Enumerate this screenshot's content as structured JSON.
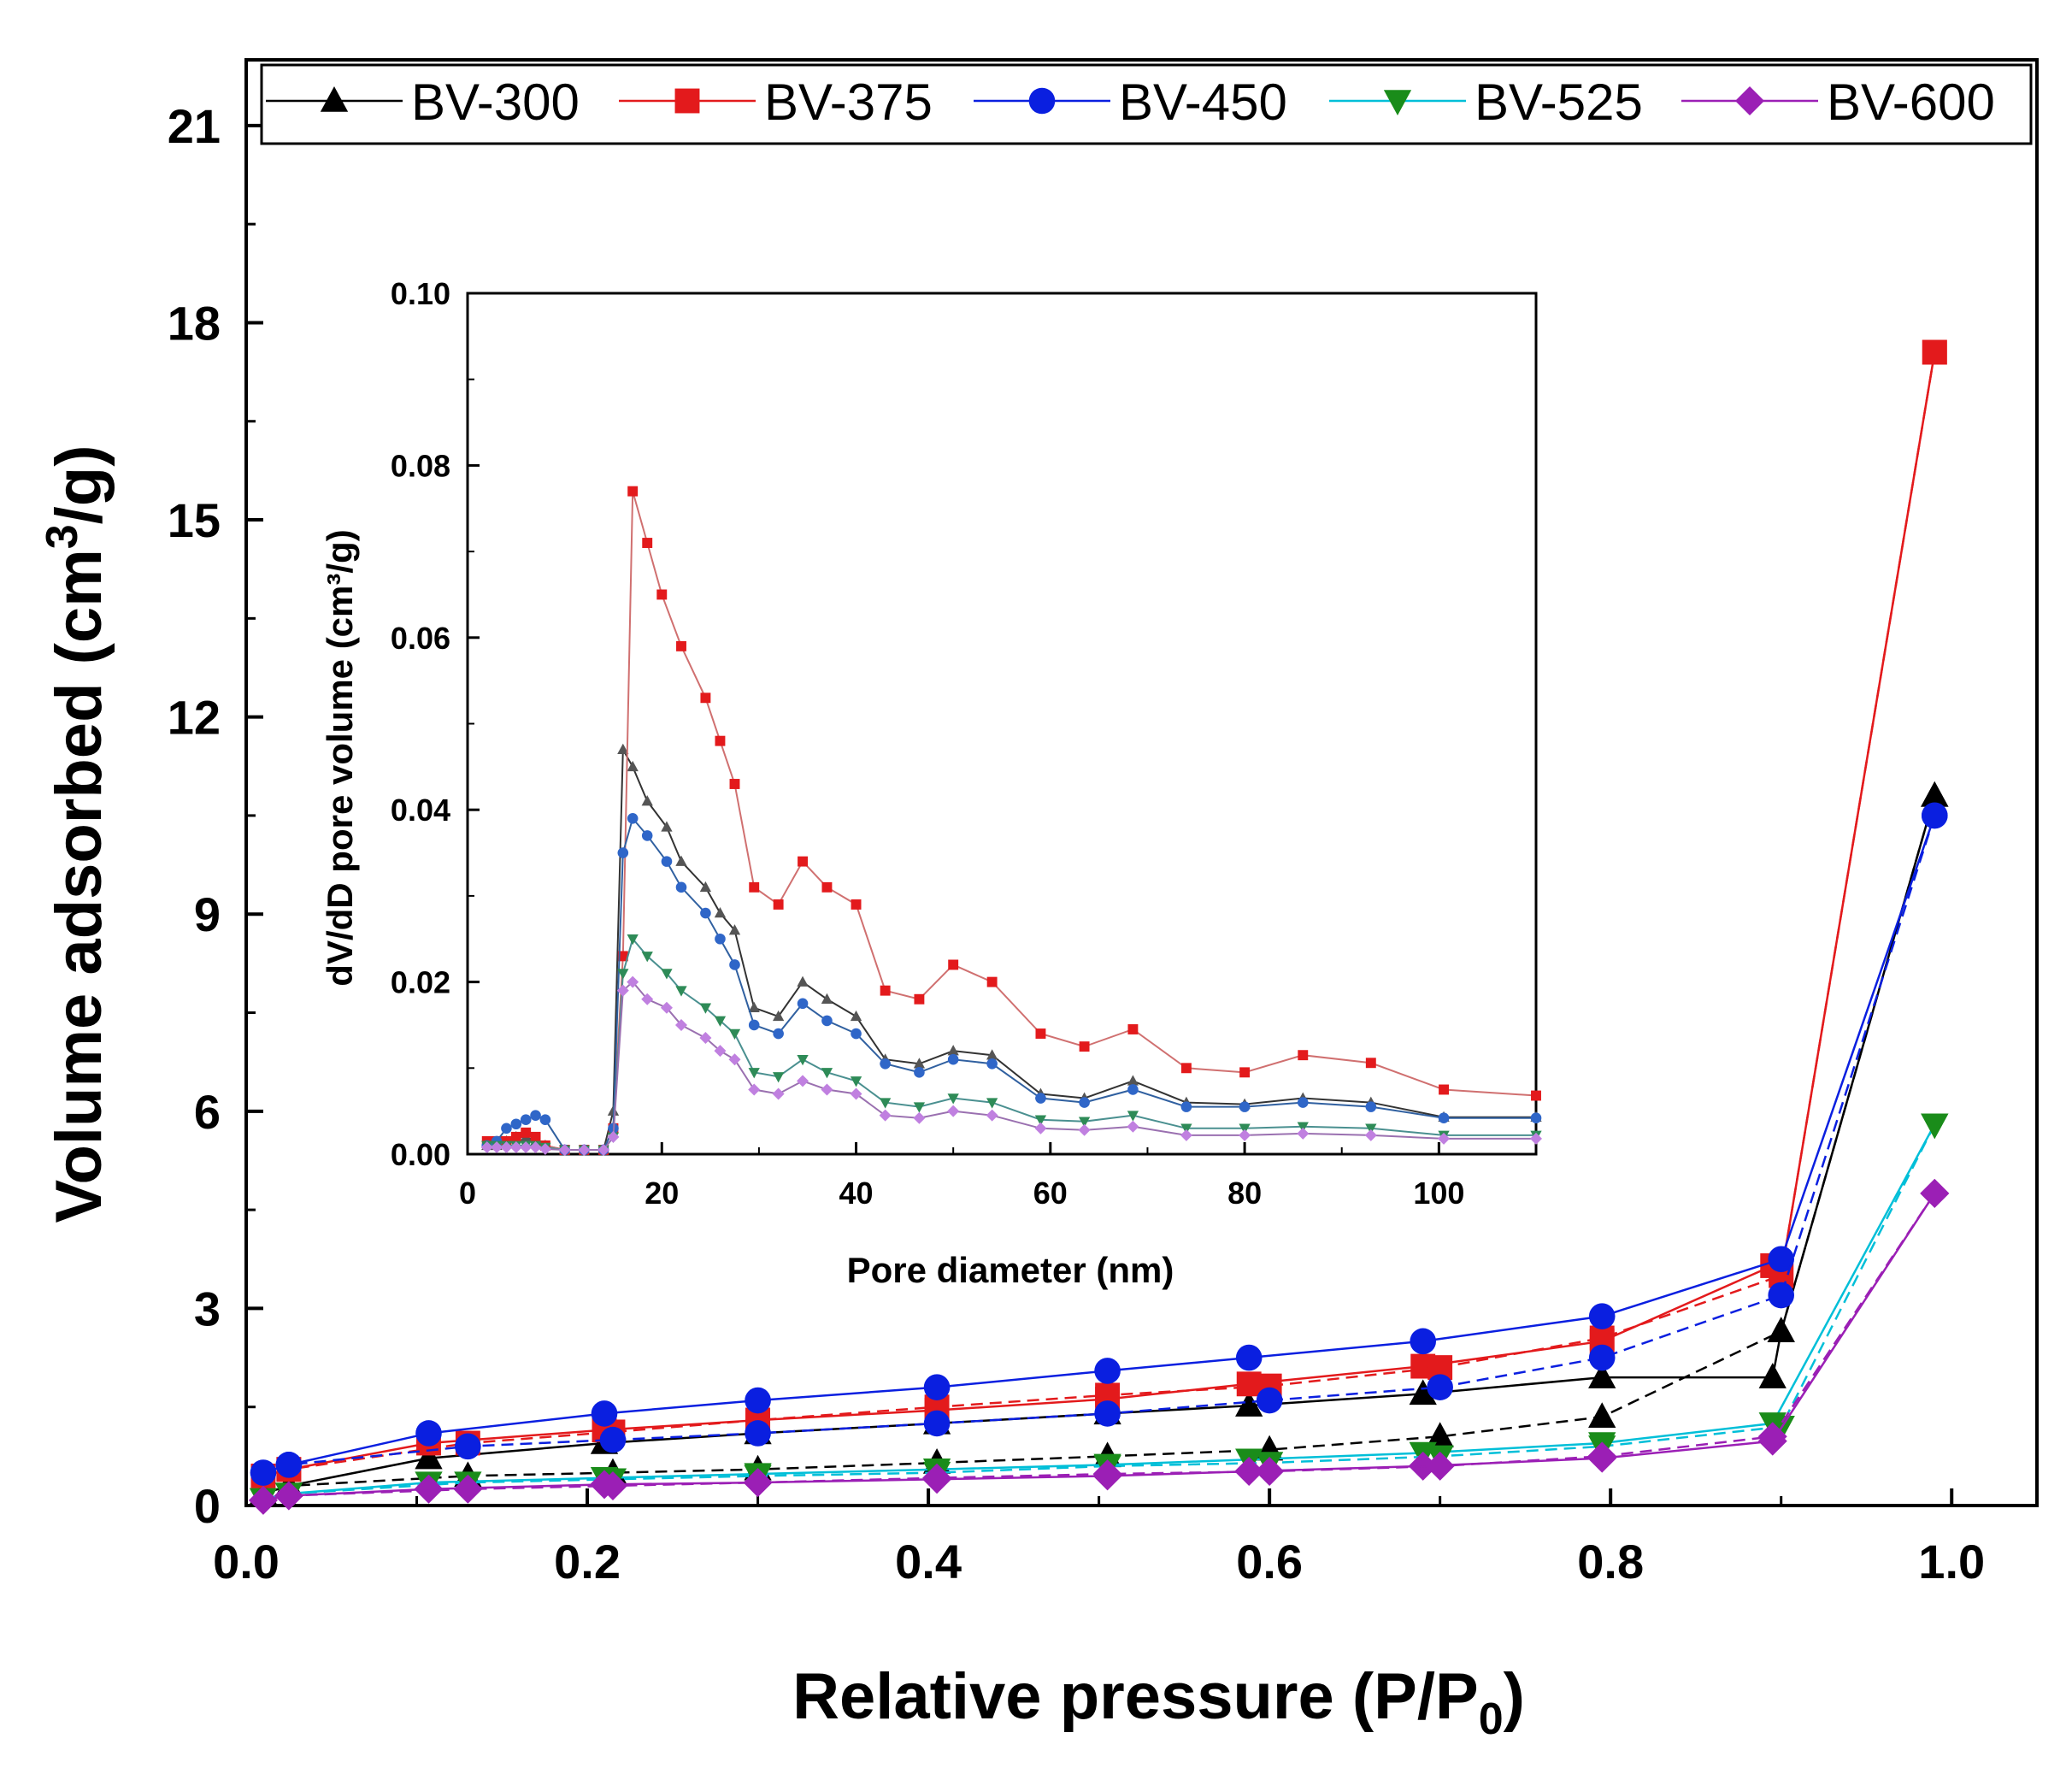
{
  "chart_data": [
    {
      "type": "line",
      "title": "",
      "xlabel_text": "Relative pressure (P/P",
      "xlabel_sub": "0",
      "xlabel_end": ")",
      "ylabel_text": "Volume adsorbed (cm",
      "ylabel_sup": "3",
      "ylabel_end": "/g)",
      "xlim": [
        0,
        1.05
      ],
      "ylim": [
        0,
        22
      ],
      "xticks": [
        0.0,
        0.2,
        0.4,
        0.6,
        0.8,
        1.0
      ],
      "xtick_labels": [
        "0.0",
        "0.2",
        "0.4",
        "0.6",
        "0.8",
        "1.0"
      ],
      "yticks": [
        0,
        3,
        6,
        9,
        12,
        15,
        18,
        21
      ],
      "ytick_labels": [
        "0",
        "3",
        "6",
        "9",
        "12",
        "15",
        "18",
        "21"
      ],
      "legend_position": "top",
      "series": [
        {
          "name": "BV-300",
          "color": "#000000",
          "marker": "triangle",
          "adsorption": {
            "x": [
              0.01,
              0.025,
              0.107,
              0.21,
              0.3,
              0.405,
              0.505,
              0.588,
              0.69,
              0.795,
              0.895,
              0.9,
              0.99
            ],
            "y": [
              0.18,
              0.3,
              0.72,
              0.95,
              1.1,
              1.25,
              1.4,
              1.52,
              1.7,
              1.95,
              1.95,
              2.65,
              10.8
            ]
          },
          "desorption": {
            "x": [
              0.99,
              0.9,
              0.795,
              0.7,
              0.6,
              0.505,
              0.405,
              0.3,
              0.215,
              0.13,
              0.025
            ],
            "y": [
              10.8,
              2.65,
              1.35,
              1.05,
              0.85,
              0.75,
              0.65,
              0.55,
              0.5,
              0.45,
              0.3
            ]
          }
        },
        {
          "name": "BV-375",
          "color": "#e31a1c",
          "marker": "square",
          "adsorption": {
            "x": [
              0.01,
              0.025,
              0.107,
              0.21,
              0.3,
              0.405,
              0.505,
              0.588,
              0.69,
              0.795,
              0.895,
              0.9,
              0.99
            ],
            "y": [
              0.45,
              0.55,
              0.95,
              1.15,
              1.3,
              1.45,
              1.62,
              1.85,
              2.12,
              2.5,
              3.65,
              3.5,
              17.55
            ]
          },
          "desorption": {
            "x": [
              0.99,
              0.9,
              0.795,
              0.7,
              0.6,
              0.505,
              0.405,
              0.3,
              0.215,
              0.13,
              0.025
            ],
            "y": [
              17.55,
              3.5,
              2.55,
              2.1,
              1.82,
              1.68,
              1.5,
              1.3,
              1.12,
              0.95,
              0.55
            ]
          }
        },
        {
          "name": "BV-450",
          "color": "#0a1fe0",
          "marker": "circle",
          "adsorption": {
            "x": [
              0.01,
              0.025,
              0.107,
              0.21,
              0.3,
              0.405,
              0.505,
              0.588,
              0.69,
              0.795,
              0.9,
              0.99
            ],
            "y": [
              0.5,
              0.62,
              1.1,
              1.4,
              1.6,
              1.8,
              2.05,
              2.25,
              2.5,
              2.88,
              3.75,
              10.5
            ]
          },
          "desorption": {
            "x": [
              0.99,
              0.9,
              0.795,
              0.7,
              0.6,
              0.505,
              0.405,
              0.3,
              0.215,
              0.13,
              0.025
            ],
            "y": [
              10.5,
              3.2,
              2.25,
              1.8,
              1.6,
              1.4,
              1.25,
              1.1,
              1.0,
              0.9,
              0.62
            ]
          }
        },
        {
          "name": "BV-525",
          "color": "#1a8c1a",
          "line_color": "#00bfd8",
          "marker": "triangle-down",
          "adsorption": {
            "x": [
              0.01,
              0.025,
              0.107,
              0.21,
              0.3,
              0.405,
              0.505,
              0.588,
              0.69,
              0.795,
              0.895,
              0.99
            ],
            "y": [
              0.1,
              0.18,
              0.35,
              0.42,
              0.48,
              0.55,
              0.62,
              0.7,
              0.8,
              0.95,
              1.25,
              5.8
            ]
          },
          "desorption": {
            "x": [
              0.99,
              0.9,
              0.795,
              0.7,
              0.6,
              0.505,
              0.405,
              0.3,
              0.215,
              0.13,
              0.025
            ],
            "y": [
              5.8,
              1.2,
              0.9,
              0.75,
              0.65,
              0.6,
              0.5,
              0.45,
              0.4,
              0.35,
              0.18
            ]
          }
        },
        {
          "name": "BV-600",
          "color": "#9b1fb5",
          "marker": "diamond",
          "adsorption": {
            "x": [
              0.01,
              0.025,
              0.107,
              0.21,
              0.3,
              0.405,
              0.505,
              0.588,
              0.69,
              0.795,
              0.895,
              0.99
            ],
            "y": [
              0.08,
              0.15,
              0.25,
              0.32,
              0.35,
              0.4,
              0.45,
              0.52,
              0.6,
              0.72,
              0.98,
              4.75
            ]
          },
          "desorption": {
            "x": [
              0.99,
              0.895,
              0.795,
              0.7,
              0.6,
              0.505,
              0.405,
              0.3,
              0.215,
              0.13,
              0.025
            ],
            "y": [
              4.75,
              1.05,
              0.75,
              0.6,
              0.52,
              0.48,
              0.42,
              0.35,
              0.3,
              0.25,
              0.15
            ]
          }
        }
      ]
    },
    {
      "type": "line",
      "title": "",
      "xlabel": "Pore diameter (nm)",
      "ylabel": "dV/dD pore volume (cm³/g)",
      "xlim": [
        0,
        110
      ],
      "ylim": [
        0,
        0.1
      ],
      "xticks": [
        0,
        20,
        40,
        60,
        80,
        100
      ],
      "xtick_labels": [
        "0",
        "20",
        "40",
        "60",
        "80",
        "100"
      ],
      "yticks": [
        0,
        0.02,
        0.04,
        0.06,
        0.08,
        0.1
      ],
      "ytick_labels": [
        "0.00",
        "0.02",
        "0.04",
        "0.06",
        "0.08",
        "0.10"
      ],
      "series": [
        {
          "name": "BV-300",
          "color": "#555555",
          "line_color": "#333333",
          "marker": "triangle",
          "x": [
            2,
            3,
            4,
            5,
            6,
            7,
            8,
            10,
            12,
            14,
            15,
            16,
            17,
            18.5,
            20.5,
            22,
            24.5,
            26,
            27.5,
            29.5,
            32,
            34.5,
            37,
            40,
            43,
            46.5,
            50,
            54,
            59,
            63.5,
            68.5,
            74,
            80,
            86,
            93,
            100.5,
            110
          ],
          "y": [
            0.001,
            0.001,
            0.0015,
            0.002,
            0.002,
            0.0015,
            0.001,
            0.0005,
            0.0005,
            0.0005,
            0.005,
            0.047,
            0.045,
            0.041,
            0.038,
            0.034,
            0.031,
            0.028,
            0.026,
            0.017,
            0.016,
            0.02,
            0.018,
            0.016,
            0.011,
            0.0105,
            0.012,
            0.0115,
            0.007,
            0.0065,
            0.0085,
            0.006,
            0.0058,
            0.0065,
            0.006,
            0.0043,
            0.0043
          ]
        },
        {
          "name": "BV-375",
          "color": "#e31a1c",
          "line_color": "#d07070",
          "marker": "square",
          "x": [
            2,
            3,
            4,
            5,
            6,
            7,
            8,
            10,
            12,
            14,
            15,
            16,
            17,
            18.5,
            20,
            22,
            24.5,
            26,
            27.5,
            29.5,
            32,
            34.5,
            37,
            40,
            43,
            46.5,
            50,
            54,
            59,
            63.5,
            68.5,
            74,
            80,
            86,
            93,
            100.5,
            110
          ],
          "y": [
            0.0015,
            0.0015,
            0.0015,
            0.002,
            0.0025,
            0.002,
            0.001,
            0.0005,
            0.0005,
            0.0005,
            0.003,
            0.023,
            0.077,
            0.071,
            0.065,
            0.059,
            0.053,
            0.048,
            0.043,
            0.031,
            0.029,
            0.034,
            0.031,
            0.029,
            0.019,
            0.018,
            0.022,
            0.02,
            0.014,
            0.0125,
            0.0145,
            0.01,
            0.0095,
            0.0115,
            0.0106,
            0.0075,
            0.0068
          ]
        },
        {
          "name": "BV-450",
          "color": "#2f66c8",
          "line_color": "#3060a0",
          "marker": "circle",
          "x": [
            2,
            3,
            4,
            5,
            6,
            7,
            8,
            10,
            12,
            14,
            15,
            16,
            17,
            18.5,
            20.5,
            22,
            24.5,
            26,
            27.5,
            29.5,
            32,
            34.5,
            37,
            40,
            43,
            46.5,
            50,
            54,
            59,
            63.5,
            68.5,
            74,
            80,
            86,
            93,
            100.5,
            110
          ],
          "y": [
            0.001,
            0.0015,
            0.003,
            0.0035,
            0.004,
            0.0045,
            0.004,
            0.0005,
            0.0005,
            0.0005,
            0.003,
            0.035,
            0.039,
            0.037,
            0.034,
            0.031,
            0.028,
            0.025,
            0.022,
            0.015,
            0.014,
            0.0175,
            0.0155,
            0.014,
            0.0105,
            0.0095,
            0.011,
            0.0105,
            0.0065,
            0.006,
            0.0075,
            0.0055,
            0.0055,
            0.006,
            0.0055,
            0.0042,
            0.0042
          ]
        },
        {
          "name": "BV-525",
          "color": "#2e8b57",
          "line_color": "#4a9090",
          "marker": "triangle-down",
          "x": [
            2,
            3,
            4,
            5,
            6,
            7,
            8,
            10,
            12,
            14,
            15,
            16,
            17,
            18.5,
            20.5,
            22,
            24.5,
            26,
            27.5,
            29.5,
            32,
            34.5,
            37,
            40,
            43,
            46.5,
            50,
            54,
            59,
            63.5,
            68.5,
            74,
            80,
            86,
            93,
            100.5,
            110
          ],
          "y": [
            0.001,
            0.001,
            0.001,
            0.001,
            0.001,
            0.001,
            0.0008,
            0.0005,
            0.0005,
            0.0005,
            0.002,
            0.021,
            0.025,
            0.023,
            0.021,
            0.019,
            0.017,
            0.0155,
            0.014,
            0.0095,
            0.009,
            0.011,
            0.0095,
            0.0085,
            0.006,
            0.0055,
            0.0065,
            0.006,
            0.004,
            0.0038,
            0.0045,
            0.003,
            0.003,
            0.0032,
            0.003,
            0.0022,
            0.0022
          ]
        },
        {
          "name": "BV-600",
          "color": "#c080e0",
          "line_color": "#9a70b0",
          "marker": "diamond",
          "x": [
            2,
            3,
            4,
            5,
            6,
            7,
            8,
            10,
            12,
            14,
            15,
            16,
            17,
            18.5,
            20.5,
            22,
            24.5,
            26,
            27.5,
            29.5,
            32,
            34.5,
            37,
            40,
            43,
            46.5,
            50,
            54,
            59,
            63.5,
            68.5,
            74,
            80,
            86,
            93,
            100.5,
            110
          ],
          "y": [
            0.0008,
            0.0008,
            0.0008,
            0.0008,
            0.0008,
            0.0008,
            0.0006,
            0.0005,
            0.0005,
            0.0005,
            0.002,
            0.019,
            0.02,
            0.018,
            0.017,
            0.015,
            0.0135,
            0.012,
            0.011,
            0.0075,
            0.007,
            0.0085,
            0.0075,
            0.007,
            0.0045,
            0.0042,
            0.005,
            0.0045,
            0.003,
            0.0028,
            0.0032,
            0.0022,
            0.0022,
            0.0024,
            0.0022,
            0.0018,
            0.0018
          ]
        }
      ]
    }
  ]
}
